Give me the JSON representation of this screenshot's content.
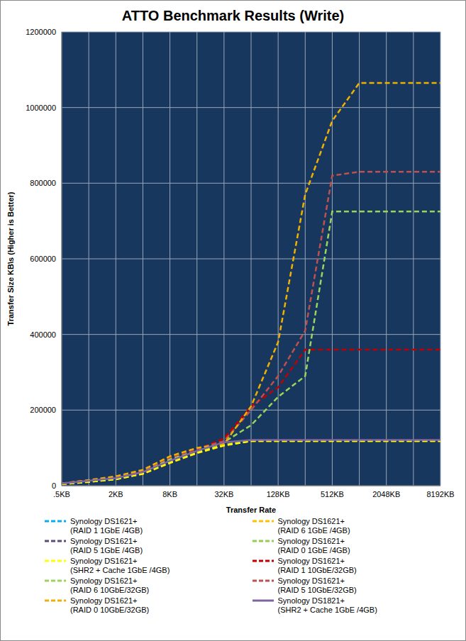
{
  "chart_data": {
    "type": "line",
    "title": "ATTO Benchmark Results (Write)",
    "x_label": "Transfer Rate",
    "y_label": "Transfer Size  KB\\s  (Higher is Better)",
    "categories": [
      ".5KB",
      null,
      "2KB",
      null,
      "8KB",
      null,
      "32KB",
      null,
      "128KB",
      null,
      "512KB",
      null,
      "2048KB",
      null,
      "8192KB"
    ],
    "ylim": [
      0,
      1200000
    ],
    "yticks": [
      0,
      200000,
      400000,
      600000,
      800000,
      1000000,
      1200000
    ],
    "grid": true,
    "legend": "bottom",
    "series": [
      {
        "name": "Synology DS1621+ (RAID 1 1GbE /4GB)",
        "color": "#00b0f0",
        "line_style": "dashed",
        "values": [
          5000,
          11000,
          18000,
          33000,
          62000,
          88000,
          108000,
          119000,
          119000,
          119000,
          119000,
          119000,
          119000,
          119000,
          119000
        ]
      },
      {
        "name": "Synology DS1621+ (RAID 6 1GbE /4GB)",
        "color": "#ffc000",
        "line_style": "dashed",
        "values": [
          4000,
          10000,
          17000,
          31000,
          60000,
          86000,
          106000,
          118000,
          118000,
          118000,
          118000,
          118000,
          118000,
          118000,
          118000
        ]
      },
      {
        "name": "Synology DS1621+ (RAID 5 1GbE /4GB)",
        "color": "#604a7b",
        "line_style": "dashed",
        "values": [
          5000,
          12000,
          19000,
          34000,
          64000,
          90000,
          110000,
          120000,
          120000,
          120000,
          120000,
          120000,
          120000,
          120000,
          120000
        ]
      },
      {
        "name": "Synology DS1621+ (RAID 0 1GbE /4GB)",
        "color": "#92d050",
        "line_style": "dashed",
        "values": [
          5000,
          11000,
          18000,
          33000,
          63000,
          89000,
          108000,
          119000,
          119000,
          119000,
          119000,
          119000,
          119000,
          119000,
          119000
        ]
      },
      {
        "name": "Synology DS1621+ (SHR2 + Cache 1GbE /4GB)",
        "color": "#ffff00",
        "line_style": "dashed",
        "values": [
          4000,
          10000,
          17000,
          32000,
          61000,
          87000,
          107000,
          118000,
          118000,
          118000,
          118000,
          118000,
          118000,
          118000,
          118000
        ]
      },
      {
        "name": "Synology DS1621+ (RAID 1 10GbE/32GB)",
        "color": "#c00000",
        "line_style": "dashed",
        "values": [
          6000,
          14000,
          22000,
          38000,
          72000,
          95000,
          125000,
          210000,
          260000,
          360000,
          360000,
          360000,
          360000,
          360000,
          360000
        ]
      },
      {
        "name": "Synology DS1621+ (RAID 6 10GbE/32GB)",
        "color": "#9bd45a",
        "line_style": "dashed",
        "values": [
          5000,
          13000,
          21000,
          36000,
          70000,
          92000,
          115000,
          160000,
          235000,
          290000,
          725000,
          725000,
          725000,
          725000,
          725000
        ]
      },
      {
        "name": "Synology DS1621+ (RAID 5 10GbE/32GB)",
        "color": "#c0504d",
        "line_style": "dashed",
        "values": [
          6000,
          14000,
          23000,
          40000,
          75000,
          98000,
          118000,
          200000,
          290000,
          410000,
          820000,
          830000,
          830000,
          830000,
          830000
        ]
      },
      {
        "name": "Synology DS1621+ (RAID 0 10GbE/32GB)",
        "color": "#f0b000",
        "line_style": "dashed",
        "values": [
          6000,
          15000,
          25000,
          42000,
          78000,
          100000,
          110000,
          210000,
          380000,
          770000,
          965000,
          1065000,
          1065000,
          1065000,
          1065000
        ]
      },
      {
        "name": "Synology DS1821+ (SHR2 + Cache 1GbE /4GB)",
        "color": "#8064a2",
        "line_style": "solid",
        "values": [
          6000,
          13000,
          20000,
          36000,
          66000,
          92000,
          115000,
          121000,
          121000,
          121000,
          121000,
          121000,
          121000,
          121000,
          121000
        ]
      }
    ]
  }
}
